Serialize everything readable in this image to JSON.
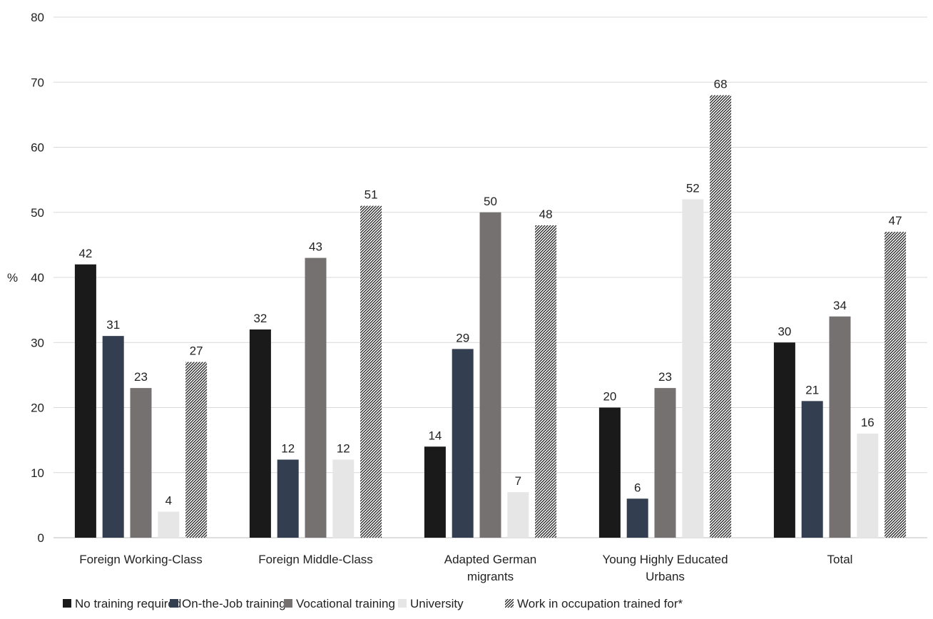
{
  "chart_data": {
    "type": "bar",
    "title": "",
    "xlabel": "",
    "ylabel": "%",
    "ylim": [
      0,
      80
    ],
    "yticks": [
      0,
      10,
      20,
      30,
      40,
      50,
      60,
      70,
      80
    ],
    "grid": true,
    "legend_position": "bottom",
    "categories": [
      "Foreign Working-Class",
      "Foreign Middle-Class",
      "Adapted German migrants",
      "Young Highly Educated Urbans",
      "Total"
    ],
    "category_lines": [
      [
        "Foreign Working-Class"
      ],
      [
        "Foreign Middle-Class"
      ],
      [
        "Adapted German",
        "migrants"
      ],
      [
        "Young Highly Educated",
        "Urbans"
      ],
      [
        "Total"
      ]
    ],
    "series": [
      {
        "name": "No training required",
        "values": [
          42,
          32,
          14,
          20,
          30
        ],
        "color": "#1a1a1a",
        "pattern": "solid"
      },
      {
        "name": "On-the-Job training",
        "values": [
          31,
          12,
          29,
          6,
          21
        ],
        "color": "#333f50",
        "pattern": "solid"
      },
      {
        "name": "Vocational training",
        "values": [
          23,
          43,
          50,
          23,
          34
        ],
        "color": "#767171",
        "pattern": "solid"
      },
      {
        "name": "University",
        "values": [
          4,
          12,
          7,
          52,
          16
        ],
        "color": "#e7e6e6",
        "pattern": "solid"
      },
      {
        "name": "Work in occupation trained for*",
        "values": [
          27,
          51,
          48,
          68,
          47
        ],
        "color": "#1a1a1a",
        "pattern": "diagonal-hatch"
      }
    ]
  }
}
